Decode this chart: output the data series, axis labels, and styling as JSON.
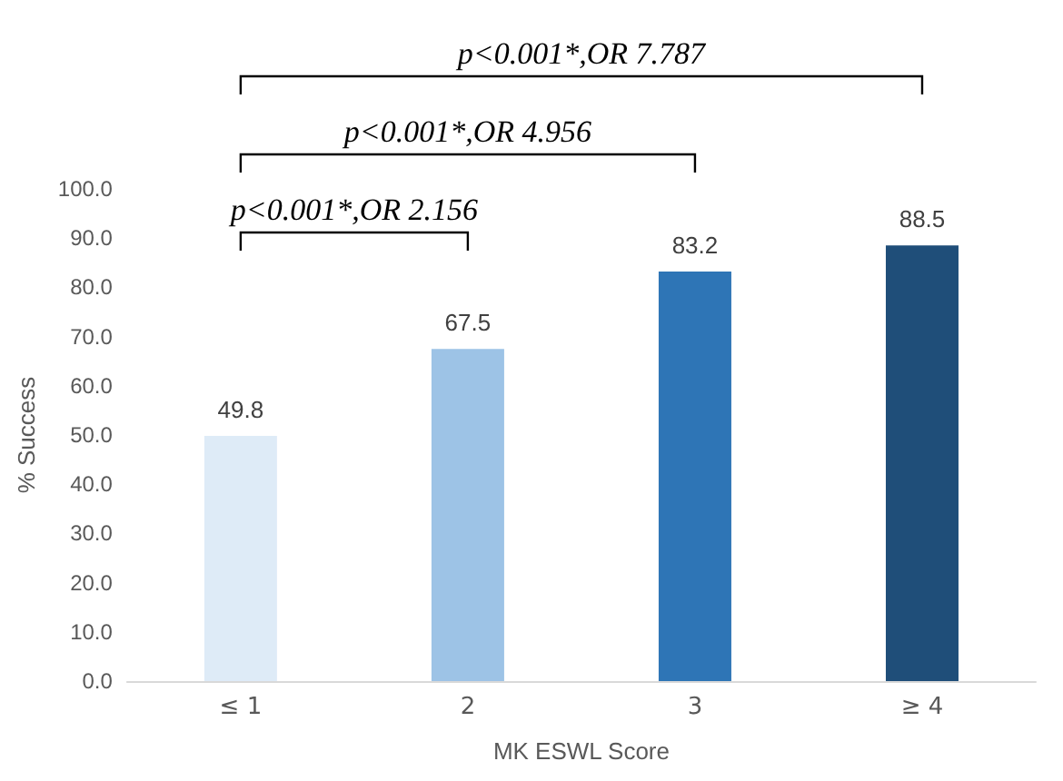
{
  "chart_data": {
    "type": "bar",
    "xlabel": "MK ESWL Score",
    "ylabel": "% Success",
    "categories": [
      "≤ 1",
      "2",
      "3",
      "≥ 4"
    ],
    "values": [
      49.8,
      67.5,
      83.2,
      88.5
    ],
    "colors": [
      "#deebf7",
      "#9dc3e6",
      "#2e75b6",
      "#1f4e79"
    ],
    "ylim": [
      0,
      100
    ],
    "yticks": [
      {
        "value": 0,
        "label": "0.0"
      },
      {
        "value": 10,
        "label": "10.0"
      },
      {
        "value": 20,
        "label": "20.0"
      },
      {
        "value": 30,
        "label": "30.0"
      },
      {
        "value": 40,
        "label": "40.0"
      },
      {
        "value": 50,
        "label": "50.0"
      },
      {
        "value": 60,
        "label": "60.0"
      },
      {
        "value": 70,
        "label": "70.0"
      },
      {
        "value": 80,
        "label": "80.0"
      },
      {
        "value": 90,
        "label": "90.0"
      },
      {
        "value": 100,
        "label": "100.0"
      }
    ],
    "grid": false,
    "data_labels": true,
    "annotations": [
      "p<0.001*,OR 2.156",
      "p<0.001*,OR 4.956",
      "p<0.001*,OR 7.787"
    ]
  }
}
